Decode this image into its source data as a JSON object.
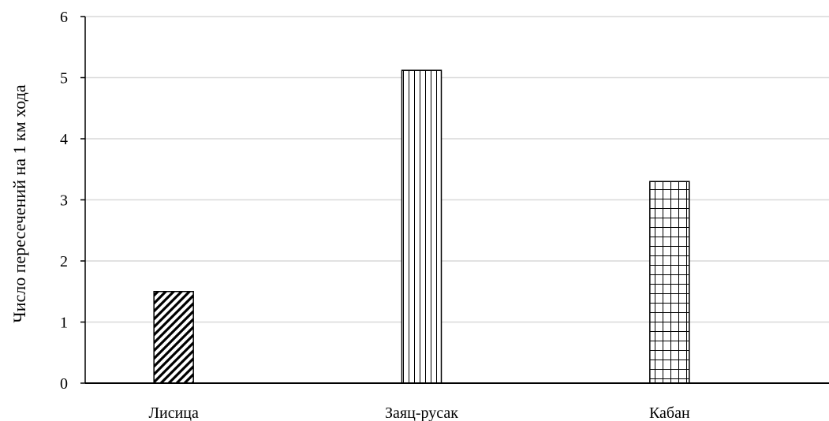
{
  "chart_data": {
    "type": "bar",
    "title": "",
    "xlabel": "",
    "ylabel": "Число пересечений на 1 км хода",
    "ylim": [
      0,
      6
    ],
    "yticks": [
      0,
      1,
      2,
      3,
      4,
      5,
      6
    ],
    "grid": true,
    "legend": "none",
    "categories": [
      "Лисица",
      "Заяц-русак",
      "Кабан"
    ],
    "values": [
      1.5,
      5.12,
      3.3
    ],
    "bar_fill_patterns": [
      "diagonal-hatch",
      "vertical-lines",
      "grid"
    ],
    "colors": {
      "bars": "#000000",
      "grid": "#d9d9d9",
      "axis": "#000000"
    }
  }
}
